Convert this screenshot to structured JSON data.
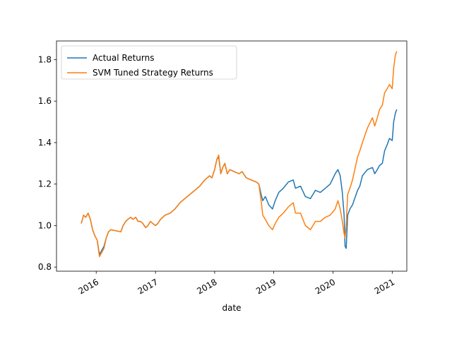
{
  "chart_data": {
    "type": "line",
    "title": "",
    "xlabel": "date",
    "ylabel": "",
    "x_range": [
      "2015-05-01",
      "2021-04-01"
    ],
    "ylim": [
      0.78,
      1.89
    ],
    "x_ticks": [
      {
        "label": "2016",
        "date": "2016-01-01"
      },
      {
        "label": "2017",
        "date": "2017-01-01"
      },
      {
        "label": "2018",
        "date": "2018-01-01"
      },
      {
        "label": "2019",
        "date": "2019-01-01"
      },
      {
        "label": "2020",
        "date": "2020-01-01"
      },
      {
        "label": "2021",
        "date": "2021-01-01"
      }
    ],
    "y_ticks": [
      {
        "label": "0.8",
        "value": 0.8
      },
      {
        "label": "1.0",
        "value": 1.0
      },
      {
        "label": "1.2",
        "value": 1.2
      },
      {
        "label": "1.4",
        "value": 1.4
      },
      {
        "label": "1.6",
        "value": 1.6
      },
      {
        "label": "1.8",
        "value": 1.8
      }
    ],
    "grid": false,
    "legend_position": "top-left",
    "series": [
      {
        "name": "Actual Returns",
        "color": "#1f77b4",
        "points": [
          [
            "2015-10-01",
            1.01
          ],
          [
            "2015-10-15",
            1.05
          ],
          [
            "2015-10-29",
            1.04
          ],
          [
            "2015-11-12",
            1.06
          ],
          [
            "2015-11-26",
            1.03
          ],
          [
            "2015-12-10",
            0.98
          ],
          [
            "2015-12-24",
            0.95
          ],
          [
            "2016-01-07",
            0.93
          ],
          [
            "2016-01-21",
            0.86
          ],
          [
            "2016-02-04",
            0.88
          ],
          [
            "2016-02-18",
            0.9
          ],
          [
            "2016-03-03",
            0.94
          ],
          [
            "2016-03-17",
            0.97
          ],
          [
            "2016-03-31",
            0.98
          ],
          [
            "2016-06-01",
            0.97
          ],
          [
            "2016-06-15",
            1.0
          ],
          [
            "2016-07-01",
            1.02
          ],
          [
            "2016-07-15",
            1.03
          ],
          [
            "2016-08-01",
            1.04
          ],
          [
            "2016-08-15",
            1.03
          ],
          [
            "2016-09-01",
            1.04
          ],
          [
            "2016-09-15",
            1.02
          ],
          [
            "2016-10-01",
            1.02
          ],
          [
            "2016-10-15",
            1.01
          ],
          [
            "2016-11-01",
            0.99
          ],
          [
            "2016-11-15",
            1.0
          ],
          [
            "2016-12-01",
            1.02
          ],
          [
            "2016-12-15",
            1.01
          ],
          [
            "2017-01-01",
            1.0
          ],
          [
            "2017-01-15",
            1.01
          ],
          [
            "2017-02-01",
            1.03
          ],
          [
            "2017-03-01",
            1.05
          ],
          [
            "2017-04-01",
            1.06
          ],
          [
            "2017-05-01",
            1.08
          ],
          [
            "2017-06-01",
            1.11
          ],
          [
            "2017-07-01",
            1.13
          ],
          [
            "2017-08-01",
            1.15
          ],
          [
            "2017-09-01",
            1.17
          ],
          [
            "2017-10-01",
            1.19
          ],
          [
            "2017-11-01",
            1.22
          ],
          [
            "2017-12-01",
            1.24
          ],
          [
            "2017-12-15",
            1.23
          ],
          [
            "2018-01-01",
            1.27
          ],
          [
            "2018-01-15",
            1.32
          ],
          [
            "2018-01-26",
            1.33
          ],
          [
            "2018-02-08",
            1.25
          ],
          [
            "2018-02-20",
            1.28
          ],
          [
            "2018-03-05",
            1.3
          ],
          [
            "2018-03-20",
            1.25
          ],
          [
            "2018-04-05",
            1.27
          ],
          [
            "2018-05-01",
            1.26
          ],
          [
            "2018-06-01",
            1.25
          ],
          [
            "2018-06-20",
            1.26
          ],
          [
            "2018-07-15",
            1.23
          ],
          [
            "2018-08-15",
            1.22
          ],
          [
            "2018-09-15",
            1.21
          ],
          [
            "2018-10-01",
            1.2
          ],
          [
            "2018-10-15",
            1.15
          ],
          [
            "2018-10-25",
            1.12
          ],
          [
            "2018-11-10",
            1.14
          ],
          [
            "2018-12-01",
            1.1
          ],
          [
            "2018-12-24",
            1.08
          ],
          [
            "2019-01-10",
            1.12
          ],
          [
            "2019-02-01",
            1.16
          ],
          [
            "2019-03-01",
            1.18
          ],
          [
            "2019-04-01",
            1.21
          ],
          [
            "2019-05-01",
            1.22
          ],
          [
            "2019-05-15",
            1.18
          ],
          [
            "2019-06-15",
            1.19
          ],
          [
            "2019-07-15",
            1.14
          ],
          [
            "2019-08-15",
            1.13
          ],
          [
            "2019-09-15",
            1.17
          ],
          [
            "2019-10-15",
            1.16
          ],
          [
            "2019-11-15",
            1.18
          ],
          [
            "2019-12-15",
            1.2
          ],
          [
            "2020-01-15",
            1.25
          ],
          [
            "2020-02-01",
            1.27
          ],
          [
            "2020-02-15",
            1.24
          ],
          [
            "2020-02-28",
            1.16
          ],
          [
            "2020-03-10",
            1.05
          ],
          [
            "2020-03-16",
            0.9
          ],
          [
            "2020-03-23",
            0.89
          ],
          [
            "2020-04-01",
            1.05
          ],
          [
            "2020-04-15",
            1.08
          ],
          [
            "2020-05-01",
            1.1
          ],
          [
            "2020-06-01",
            1.17
          ],
          [
            "2020-06-15",
            1.19
          ],
          [
            "2020-07-01",
            1.24
          ],
          [
            "2020-08-01",
            1.27
          ],
          [
            "2020-09-01",
            1.28
          ],
          [
            "2020-09-15",
            1.25
          ],
          [
            "2020-10-01",
            1.27
          ],
          [
            "2020-10-15",
            1.29
          ],
          [
            "2020-11-01",
            1.3
          ],
          [
            "2020-11-15",
            1.36
          ],
          [
            "2020-12-01",
            1.39
          ],
          [
            "2020-12-15",
            1.42
          ],
          [
            "2021-01-01",
            1.41
          ],
          [
            "2021-01-10",
            1.5
          ],
          [
            "2021-01-20",
            1.54
          ],
          [
            "2021-01-29",
            1.56
          ]
        ]
      },
      {
        "name": "SVM Tuned Strategy Returns",
        "color": "#ff7f0e",
        "points": [
          [
            "2015-10-01",
            1.01
          ],
          [
            "2015-10-15",
            1.05
          ],
          [
            "2015-10-29",
            1.04
          ],
          [
            "2015-11-12",
            1.06
          ],
          [
            "2015-11-26",
            1.03
          ],
          [
            "2015-12-10",
            0.98
          ],
          [
            "2015-12-24",
            0.95
          ],
          [
            "2016-01-07",
            0.93
          ],
          [
            "2016-01-21",
            0.85
          ],
          [
            "2016-02-04",
            0.87
          ],
          [
            "2016-02-18",
            0.89
          ],
          [
            "2016-03-03",
            0.94
          ],
          [
            "2016-03-17",
            0.97
          ],
          [
            "2016-03-31",
            0.98
          ],
          [
            "2016-06-01",
            0.97
          ],
          [
            "2016-06-15",
            1.0
          ],
          [
            "2016-07-01",
            1.02
          ],
          [
            "2016-07-15",
            1.03
          ],
          [
            "2016-08-01",
            1.04
          ],
          [
            "2016-08-15",
            1.03
          ],
          [
            "2016-09-01",
            1.04
          ],
          [
            "2016-09-15",
            1.02
          ],
          [
            "2016-10-01",
            1.02
          ],
          [
            "2016-10-15",
            1.01
          ],
          [
            "2016-11-01",
            0.99
          ],
          [
            "2016-11-15",
            1.0
          ],
          [
            "2016-12-01",
            1.02
          ],
          [
            "2016-12-15",
            1.01
          ],
          [
            "2017-01-01",
            1.0
          ],
          [
            "2017-01-15",
            1.01
          ],
          [
            "2017-02-01",
            1.03
          ],
          [
            "2017-03-01",
            1.05
          ],
          [
            "2017-04-01",
            1.06
          ],
          [
            "2017-05-01",
            1.08
          ],
          [
            "2017-06-01",
            1.11
          ],
          [
            "2017-07-01",
            1.13
          ],
          [
            "2017-08-01",
            1.15
          ],
          [
            "2017-09-01",
            1.17
          ],
          [
            "2017-10-01",
            1.19
          ],
          [
            "2017-11-01",
            1.22
          ],
          [
            "2017-12-01",
            1.24
          ],
          [
            "2017-12-15",
            1.23
          ],
          [
            "2018-01-01",
            1.27
          ],
          [
            "2018-01-15",
            1.32
          ],
          [
            "2018-01-26",
            1.34
          ],
          [
            "2018-02-08",
            1.25
          ],
          [
            "2018-02-20",
            1.28
          ],
          [
            "2018-03-05",
            1.3
          ],
          [
            "2018-03-20",
            1.25
          ],
          [
            "2018-04-05",
            1.27
          ],
          [
            "2018-05-01",
            1.26
          ],
          [
            "2018-06-01",
            1.25
          ],
          [
            "2018-06-20",
            1.26
          ],
          [
            "2018-07-15",
            1.23
          ],
          [
            "2018-08-15",
            1.22
          ],
          [
            "2018-09-15",
            1.21
          ],
          [
            "2018-10-01",
            1.2
          ],
          [
            "2018-10-15",
            1.12
          ],
          [
            "2018-10-25",
            1.05
          ],
          [
            "2018-11-10",
            1.03
          ],
          [
            "2018-12-01",
            1.0
          ],
          [
            "2018-12-24",
            0.98
          ],
          [
            "2019-01-10",
            1.01
          ],
          [
            "2019-02-01",
            1.04
          ],
          [
            "2019-03-01",
            1.06
          ],
          [
            "2019-04-01",
            1.09
          ],
          [
            "2019-05-01",
            1.11
          ],
          [
            "2019-05-15",
            1.06
          ],
          [
            "2019-06-15",
            1.06
          ],
          [
            "2019-07-15",
            1.0
          ],
          [
            "2019-08-15",
            0.98
          ],
          [
            "2019-09-15",
            1.02
          ],
          [
            "2019-10-15",
            1.02
          ],
          [
            "2019-11-15",
            1.04
          ],
          [
            "2019-12-15",
            1.05
          ],
          [
            "2020-01-15",
            1.08
          ],
          [
            "2020-02-01",
            1.12
          ],
          [
            "2020-02-15",
            1.08
          ],
          [
            "2020-02-28",
            1.02
          ],
          [
            "2020-03-10",
            0.96
          ],
          [
            "2020-03-16",
            0.94
          ],
          [
            "2020-03-23",
            1.0
          ],
          [
            "2020-04-01",
            1.15
          ],
          [
            "2020-04-15",
            1.18
          ],
          [
            "2020-05-01",
            1.22
          ],
          [
            "2020-06-01",
            1.33
          ],
          [
            "2020-06-15",
            1.36
          ],
          [
            "2020-07-01",
            1.4
          ],
          [
            "2020-08-01",
            1.47
          ],
          [
            "2020-09-01",
            1.52
          ],
          [
            "2020-09-15",
            1.48
          ],
          [
            "2020-10-01",
            1.52
          ],
          [
            "2020-10-15",
            1.56
          ],
          [
            "2020-11-01",
            1.58
          ],
          [
            "2020-11-15",
            1.64
          ],
          [
            "2020-12-01",
            1.66
          ],
          [
            "2020-12-15",
            1.68
          ],
          [
            "2021-01-01",
            1.66
          ],
          [
            "2021-01-10",
            1.76
          ],
          [
            "2021-01-20",
            1.82
          ],
          [
            "2021-01-29",
            1.84
          ]
        ]
      }
    ]
  }
}
